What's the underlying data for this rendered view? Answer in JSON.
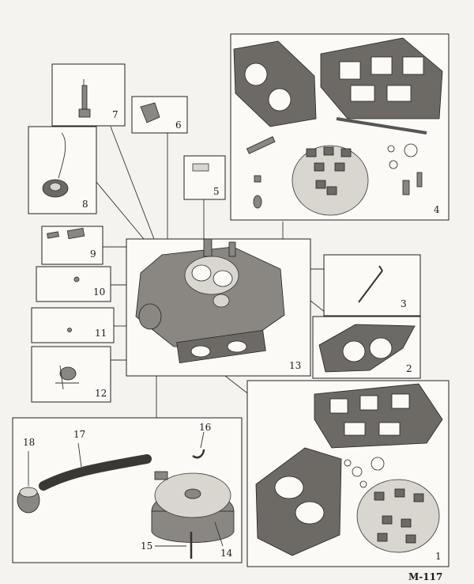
{
  "figure": {
    "caption": "M-117"
  },
  "callouts": [
    {
      "id": 1,
      "label": "1"
    },
    {
      "id": 2,
      "label": "2"
    },
    {
      "id": 3,
      "label": "3"
    },
    {
      "id": 4,
      "label": "4"
    },
    {
      "id": 5,
      "label": "5"
    },
    {
      "id": 6,
      "label": "6"
    },
    {
      "id": 7,
      "label": "7"
    },
    {
      "id": 8,
      "label": "8"
    },
    {
      "id": 9,
      "label": "9"
    },
    {
      "id": 10,
      "label": "10"
    },
    {
      "id": 11,
      "label": "11"
    },
    {
      "id": 12,
      "label": "12"
    },
    {
      "id": 13,
      "label": "13"
    },
    {
      "id": 14,
      "label": "14"
    },
    {
      "id": 15,
      "label": "15"
    },
    {
      "id": 16,
      "label": "16"
    },
    {
      "id": 17,
      "label": "17"
    },
    {
      "id": 18,
      "label": "18"
    }
  ]
}
